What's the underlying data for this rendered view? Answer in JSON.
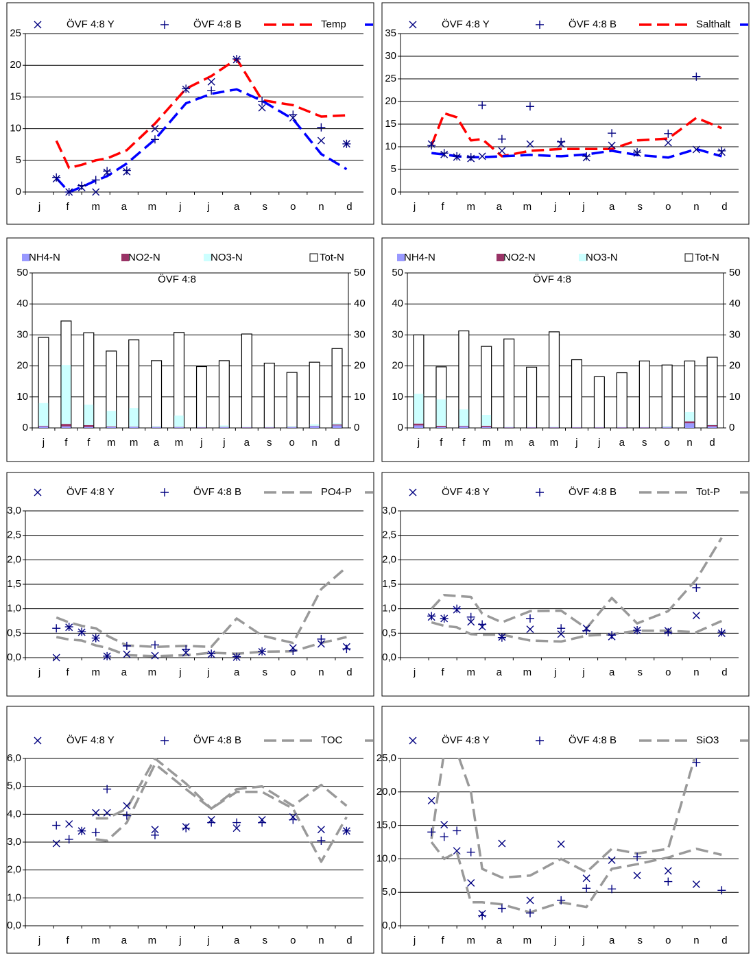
{
  "chart_data": [
    {
      "type": "line",
      "categories": [
        "j",
        "f",
        "m",
        "a",
        "m",
        "j",
        "j",
        "a",
        "s",
        "o",
        "n",
        "d"
      ],
      "x": [
        0.6,
        1.05,
        1.5,
        2.0,
        2.4,
        3.1,
        4.1,
        5.2,
        6.1,
        7.0,
        7.9,
        9.0,
        10.0,
        10.9
      ],
      "ylim": [
        0,
        25
      ],
      "yticks": [
        0,
        5,
        10,
        15,
        20,
        25
      ],
      "grid": true,
      "series": [
        {
          "name": "ÖVF 4:8 Y",
          "color": "#000080",
          "marker": "cross",
          "values": [
            2.1,
            0,
            0.7,
            0,
            3.1,
            3.2,
            10,
            16.2,
            17.4,
            20.9,
            13.3,
            11.7,
            8.1,
            7.6
          ]
        },
        {
          "name": "ÖVF 4:8 B",
          "color": "#000080",
          "marker": "plus",
          "values": [
            2.3,
            0,
            1,
            1.9,
            3.3,
            3.4,
            8.3,
            16.3,
            16,
            21,
            14.3,
            12.2,
            10.2,
            7.6
          ]
        },
        {
          "name": "Temp",
          "color": "#ff0000",
          "dash": true,
          "values": [
            8.1,
            3.8,
            4.3,
            5,
            5.3,
            6.6,
            10.8,
            16.3,
            18.3,
            21,
            14.5,
            13.7,
            11.9,
            12.1
          ]
        },
        {
          "color": "#0000ff",
          "dash": true,
          "values": [
            2.2,
            0,
            0.8,
            1.8,
            2.5,
            4.5,
            8.3,
            14,
            15.5,
            16.2,
            14.4,
            11.5,
            6,
            3.6
          ]
        }
      ]
    },
    {
      "type": "line",
      "categories": [
        "j",
        "f",
        "m",
        "a",
        "m",
        "j",
        "j",
        "a",
        "s",
        "o",
        "n",
        "d"
      ],
      "x": [
        0.6,
        1.05,
        1.5,
        2.0,
        2.4,
        3.1,
        4.1,
        5.2,
        6.1,
        7.0,
        7.9,
        9.0,
        10.0,
        10.9
      ],
      "ylim": [
        0,
        35
      ],
      "yticks": [
        0,
        5,
        10,
        15,
        20,
        25,
        30,
        35
      ],
      "grid": true,
      "series": [
        {
          "name": "ÖVF 4:8 Y",
          "color": "#000080",
          "marker": "cross",
          "values": [
            10.6,
            8.3,
            7.7,
            7.4,
            7.9,
            9.1,
            10.6,
            10.6,
            7.6,
            10.3,
            8.6,
            10.9,
            9.4,
            8.8
          ]
        },
        {
          "name": "ÖVF 4:8 B",
          "color": "#000080",
          "marker": "plus",
          "values": [
            10.3,
            8.6,
            7.9,
            7.7,
            19.2,
            11.7,
            18.9,
            11.1,
            7.9,
            13,
            8.8,
            12.9,
            25.5,
            9.1
          ]
        },
        {
          "name": "Salthalt",
          "color": "#ff0000",
          "dash": true,
          "values": [
            10.3,
            17.4,
            16.5,
            11.4,
            11.7,
            7.9,
            9.1,
            9.5,
            9.5,
            9.5,
            11.4,
            11.8,
            16.4,
            14.1
          ]
        },
        {
          "color": "#0000ff",
          "dash": true,
          "values": [
            8.6,
            8.3,
            7.9,
            7.7,
            7.7,
            7.9,
            8.2,
            7.9,
            8.3,
            9.1,
            8.2,
            7.6,
            9.5,
            7.9
          ]
        }
      ]
    },
    {
      "type": "bar",
      "title": "ÖVF 4:8",
      "categories": [
        "j",
        "f",
        "f",
        "m",
        "m",
        "a",
        "m",
        "j",
        "j",
        "a",
        "s",
        "o",
        "n",
        "d"
      ],
      "ylim": [
        0,
        50
      ],
      "yticks": [
        0,
        10,
        20,
        30,
        40,
        50
      ],
      "y2lim": [
        0,
        50
      ],
      "y2ticks": [
        0,
        10,
        20,
        30,
        40,
        50
      ],
      "grid": true,
      "series": [
        {
          "name": "NH4-N",
          "color": "#9999ff",
          "stack": true,
          "values": [
            0.5,
            0.5,
            0.3,
            0.3,
            0.3,
            0.2,
            0.2,
            0.1,
            0.2,
            0.1,
            0.1,
            0.2,
            0.6,
            0.8
          ]
        },
        {
          "name": "NO2-N",
          "color": "#993366",
          "stack": true,
          "values": [
            0.2,
            0.8,
            0.6,
            0.2,
            0.1,
            0.1,
            0.1,
            0.1,
            0.1,
            0.1,
            0.1,
            0.1,
            0.1,
            0.3
          ]
        },
        {
          "name": "NO3-N",
          "color": "#ccffff",
          "stack": true,
          "values": [
            7.3,
            19,
            6.6,
            5,
            6,
            0.3,
            3.7,
            0.2,
            0.5,
            0.2,
            0.2,
            0.3,
            0.5,
            0.4
          ]
        },
        {
          "name": "Tot-N",
          "color": "#ffffff",
          "edge": "#000000",
          "values": [
            29.2,
            34.5,
            30.7,
            24.8,
            28.4,
            21.7,
            30.8,
            19.8,
            21.7,
            30.3,
            20.9,
            17.9,
            21.2,
            25.6
          ]
        }
      ]
    },
    {
      "type": "bar",
      "title": "ÖVF 4:8",
      "categories": [
        "j",
        "f",
        "f",
        "m",
        "m",
        "a",
        "m",
        "j",
        "j",
        "a",
        "s",
        "o",
        "n",
        "d"
      ],
      "ylim": [
        0,
        50
      ],
      "yticks": [
        0,
        10,
        20,
        30,
        40,
        50
      ],
      "y2lim": [
        0,
        50
      ],
      "y2ticks": [
        0,
        10,
        20,
        30,
        40,
        50
      ],
      "grid": true,
      "series": [
        {
          "name": "NH4-N",
          "color": "#9999ff",
          "stack": true,
          "values": [
            0.8,
            0.3,
            0.5,
            0.3,
            0.1,
            0.1,
            0.1,
            0.1,
            0.1,
            0.1,
            0.1,
            0.2,
            1.5,
            0.5
          ]
        },
        {
          "name": "NO2-N",
          "color": "#993366",
          "stack": true,
          "values": [
            0.6,
            0.4,
            0.2,
            0.4,
            0.1,
            0.1,
            0.1,
            0.1,
            0.1,
            0.1,
            0.1,
            0.1,
            0.6,
            0.4
          ]
        },
        {
          "name": "NO3-N",
          "color": "#ccffff",
          "stack": true,
          "values": [
            9.6,
            8.5,
            5.3,
            3.5,
            0.2,
            0.1,
            0.2,
            0.1,
            0.1,
            0.1,
            0.1,
            0.3,
            3,
            0.3
          ]
        },
        {
          "name": "Tot-N",
          "color": "#ffffff",
          "edge": "#000000",
          "values": [
            30,
            19.7,
            31.3,
            26.3,
            28.7,
            19.6,
            31,
            22,
            16.5,
            17.8,
            21.6,
            20.3,
            21.6,
            22.8
          ]
        }
      ]
    },
    {
      "type": "line",
      "categories": [
        "j",
        "f",
        "m",
        "a",
        "m",
        "j",
        "j",
        "a",
        "s",
        "o",
        "n",
        "d"
      ],
      "x": [
        0.6,
        1.05,
        1.5,
        2.0,
        2.4,
        3.1,
        4.1,
        5.2,
        6.1,
        7.0,
        7.9,
        9.0,
        10.0,
        10.9
      ],
      "ylim": [
        0,
        3
      ],
      "yticks": [
        {
          "value": 0,
          "label": "0,0"
        },
        {
          "value": 0.5,
          "label": "0,5"
        },
        {
          "value": 1,
          "label": "1,0"
        },
        {
          "value": 1.5,
          "label": "1,5"
        },
        {
          "value": 2,
          "label": "2,0"
        },
        {
          "value": 2.5,
          "label": "2,5"
        },
        {
          "value": 3,
          "label": "3,0"
        }
      ],
      "grid": true,
      "series": [
        {
          "name": "ÖVF 4:8 Y",
          "color": "#000080",
          "marker": "cross",
          "values": [
            0,
            0.62,
            0.52,
            0.4,
            0.03,
            0.07,
            0.04,
            0.1,
            0.07,
            0.01,
            0.12,
            0.2,
            0.28,
            0.22
          ]
        },
        {
          "name": "ÖVF 4:8 B",
          "color": "#000080",
          "marker": "plus",
          "values": [
            0.6,
            0.63,
            0.53,
            0.4,
            0.03,
            0.24,
            0.26,
            0.17,
            0.08,
            0.02,
            0.13,
            0.14,
            0.38,
            0.18
          ]
        },
        {
          "name": "PO4-P",
          "color": "#999999",
          "dash": true,
          "values": [
            0.82,
            0.72,
            0.65,
            0.6,
            0.45,
            0.25,
            0.22,
            0.24,
            0.22,
            0.8,
            0.45,
            0.3,
            1.4,
            1.85
          ]
        },
        {
          "color": "#999999",
          "dash": true,
          "values": [
            0.42,
            0.37,
            0.35,
            0.25,
            0.2,
            0.05,
            0.03,
            0.05,
            0.1,
            0.08,
            0.12,
            0.13,
            0.3,
            0.42
          ]
        }
      ]
    },
    {
      "type": "line",
      "categories": [
        "j",
        "f",
        "m",
        "a",
        "m",
        "j",
        "j",
        "a",
        "s",
        "o",
        "n",
        "d"
      ],
      "x": [
        0.6,
        1.05,
        1.5,
        2.0,
        2.4,
        3.1,
        4.1,
        5.2,
        6.1,
        7.0,
        7.9,
        9.0,
        10.0,
        10.9
      ],
      "ylim": [
        0,
        3
      ],
      "yticks": [
        {
          "value": 0,
          "label": "0,0"
        },
        {
          "value": 0.5,
          "label": "0,5"
        },
        {
          "value": 1,
          "label": "1,0"
        },
        {
          "value": 1.5,
          "label": "1,5"
        },
        {
          "value": 2,
          "label": "2,0"
        },
        {
          "value": 2.5,
          "label": "2,5"
        },
        {
          "value": 3,
          "label": "3,0"
        }
      ],
      "grid": true,
      "series": [
        {
          "name": "ÖVF 4:8 Y",
          "color": "#000080",
          "marker": "cross",
          "values": [
            0.83,
            0.8,
            0.98,
            0.73,
            0.63,
            0.42,
            0.58,
            0.48,
            0.6,
            0.43,
            0.56,
            0.55,
            0.86,
            0.5
          ]
        },
        {
          "name": "ÖVF 4:8 B",
          "color": "#000080",
          "marker": "plus",
          "values": [
            0.85,
            0.8,
            1.0,
            0.83,
            0.68,
            0.41,
            0.8,
            0.6,
            0.55,
            0.46,
            0.56,
            0.52,
            1.43,
            0.52
          ]
        },
        {
          "name": "Tot-P",
          "color": "#999999",
          "dash": true,
          "values": [
            1.0,
            1.28,
            1.26,
            1.24,
            0.9,
            0.72,
            0.95,
            0.96,
            0.6,
            1.22,
            0.7,
            0.95,
            1.6,
            2.45
          ]
        },
        {
          "color": "#999999",
          "dash": true,
          "values": [
            0.72,
            0.65,
            0.62,
            0.48,
            0.47,
            0.47,
            0.35,
            0.33,
            0.45,
            0.48,
            0.55,
            0.55,
            0.52,
            0.75
          ]
        }
      ]
    },
    {
      "type": "line",
      "categories": [
        "j",
        "f",
        "m",
        "a",
        "m",
        "j",
        "j",
        "a",
        "s",
        "o",
        "n",
        "d"
      ],
      "x": [
        0.6,
        1.05,
        1.5,
        2.0,
        2.4,
        3.1,
        4.1,
        5.2,
        6.1,
        7.0,
        7.9,
        9.0,
        10.0,
        10.9
      ],
      "ylim": [
        0,
        6
      ],
      "yticks": [
        {
          "value": 0,
          "label": "0,0"
        },
        {
          "value": 1,
          "label": "1,0"
        },
        {
          "value": 2,
          "label": "2,0"
        },
        {
          "value": 3,
          "label": "3,0"
        },
        {
          "value": 4,
          "label": "4,0"
        },
        {
          "value": 5,
          "label": "5,0"
        },
        {
          "value": 6,
          "label": "6,0"
        }
      ],
      "grid": true,
      "series": [
        {
          "name": "ÖVF 4:8 Y",
          "color": "#000080",
          "marker": "cross",
          "values": [
            2.95,
            3.65,
            3.4,
            4.05,
            4.05,
            4.3,
            3.45,
            3.55,
            3.8,
            3.5,
            3.8,
            3.9,
            3.45,
            3.4
          ]
        },
        {
          "name": "ÖVF 4:8 B",
          "color": "#000080",
          "marker": "plus",
          "values": [
            3.6,
            3.1,
            3.4,
            3.35,
            4.9,
            3.95,
            3.25,
            3.5,
            3.7,
            3.7,
            3.7,
            3.8,
            3.05,
            3.4
          ]
        },
        {
          "name": "TOC",
          "color": "#999999",
          "dash": true,
          "values": [
            null,
            null,
            null,
            3.85,
            3.85,
            4.2,
            6.0,
            5.1,
            4.2,
            4.9,
            5.0,
            4.3,
            5.05,
            4.3
          ]
        },
        {
          "color": "#999999",
          "dash": true,
          "values": [
            null,
            null,
            null,
            3.1,
            3.05,
            3.7,
            5.8,
            4.9,
            4.2,
            4.8,
            4.8,
            4.2,
            2.3,
            3.9
          ]
        }
      ]
    },
    {
      "type": "line",
      "categories": [
        "j",
        "f",
        "m",
        "a",
        "m",
        "j",
        "j",
        "a",
        "s",
        "o",
        "n",
        "d"
      ],
      "x": [
        0.6,
        1.05,
        1.5,
        2.0,
        2.4,
        3.1,
        4.1,
        5.2,
        6.1,
        7.0,
        7.9,
        9.0,
        10.0,
        10.9
      ],
      "ylim": [
        0,
        25
      ],
      "yticks": [
        {
          "value": 0,
          "label": "0,0"
        },
        {
          "value": 5,
          "label": "5,0"
        },
        {
          "value": 10,
          "label": "10,0"
        },
        {
          "value": 15,
          "label": "15,0"
        },
        {
          "value": 20,
          "label": "20,0"
        },
        {
          "value": 25,
          "label": "25,0"
        }
      ],
      "grid": true,
      "series": [
        {
          "name": "ÖVF 4:8 Y",
          "color": "#000080",
          "marker": "cross",
          "values": [
            18.7,
            15.1,
            11.2,
            6.4,
            1.8,
            12.3,
            3.8,
            12.2,
            7.1,
            9.8,
            7.5,
            8.2,
            6.2,
            null
          ]
        },
        {
          "name": "ÖVF 4:8 B",
          "color": "#000080",
          "marker": "plus",
          "values": [
            14,
            13.3,
            14.2,
            11,
            1.5,
            2.6,
            1.9,
            3.8,
            5.6,
            5.5,
            10.3,
            6.6,
            24.4,
            5.3
          ]
        },
        {
          "name": "SiO3",
          "color": "#999999",
          "dash": true,
          "values": [
            13,
            26,
            26,
            20,
            8.5,
            7.2,
            7.5,
            10,
            8,
            11.5,
            10.8,
            11.5,
            26,
            null
          ]
        },
        {
          "color": "#999999",
          "dash": true,
          "values": [
            12.5,
            10,
            11,
            3.5,
            3.5,
            3.2,
            2,
            3.5,
            2.8,
            8.5,
            9.2,
            10.2,
            11.5,
            10.6
          ]
        }
      ]
    }
  ]
}
